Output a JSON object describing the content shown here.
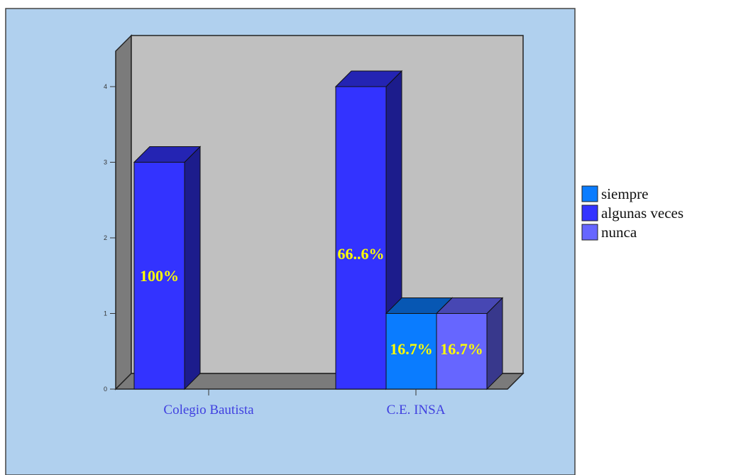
{
  "chart_data": {
    "type": "bar",
    "style": "3d-clustered",
    "categories": [
      "Colegio Bautista",
      "C.E. INSA"
    ],
    "series": [
      {
        "name": "siempre",
        "color": "#0a7cff",
        "values": [
          0,
          1
        ],
        "labels": [
          "",
          "16.7%"
        ]
      },
      {
        "name": "algunas veces",
        "color": "#3333ff",
        "values": [
          3,
          4
        ],
        "labels": [
          "100%",
          "66..6%"
        ]
      },
      {
        "name": "nunca",
        "color": "#6666ff",
        "values": [
          0,
          1
        ],
        "labels": [
          "",
          "16.7%"
        ]
      }
    ],
    "yticks": [
      "0",
      "1",
      "2",
      "3",
      "4"
    ],
    "ylim": [
      0,
      4
    ],
    "legend_position": "right",
    "grid": false,
    "colors": {
      "panel_background": "#b0d0ee",
      "wall": "#c0c0c0",
      "side_wall": "#7b7b7b",
      "label_text": "#ffff00",
      "category_text": "#4040e0"
    }
  }
}
